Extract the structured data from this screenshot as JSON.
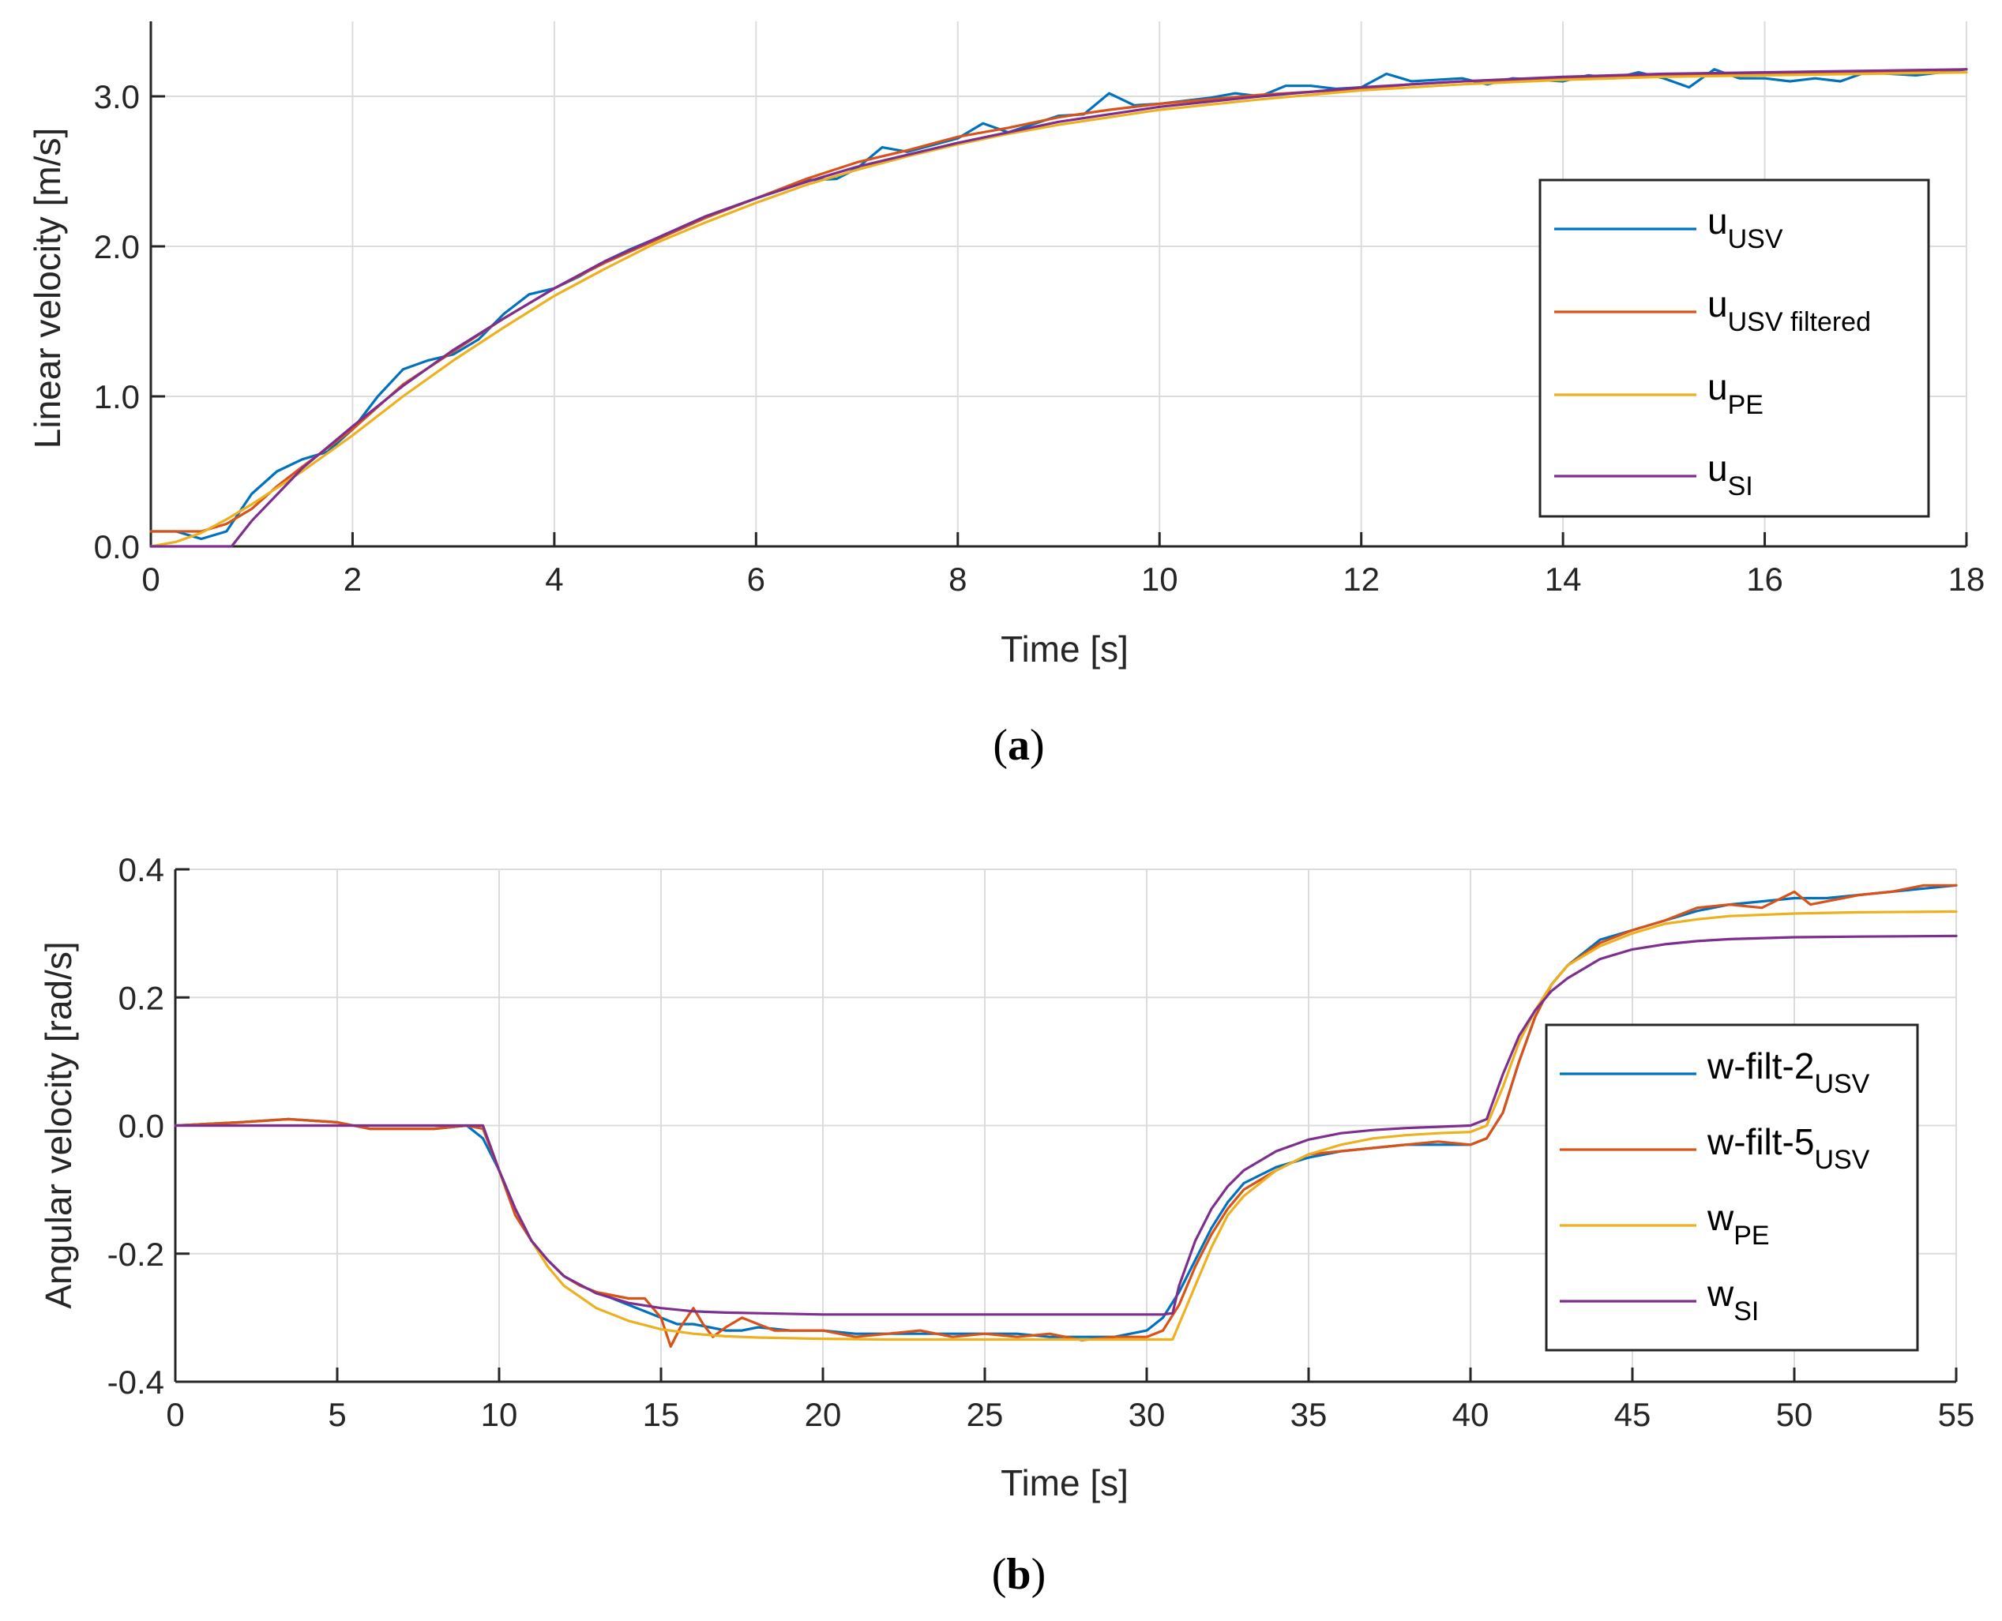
{
  "chart_data": [
    {
      "type": "line",
      "panel": "a",
      "caption_letter": "a",
      "xlabel": "Time [s]",
      "ylabel": "Linear velocity [m/s]",
      "xlim": [
        0,
        18
      ],
      "ylim": [
        0,
        3.5
      ],
      "xticks": [
        0,
        2,
        4,
        6,
        8,
        10,
        12,
        14,
        16,
        18
      ],
      "xtick_labels": [
        "0",
        "2",
        "4",
        "6",
        "8",
        "10",
        "12",
        "14",
        "16",
        "18"
      ],
      "yticks": [
        0,
        1,
        2,
        3
      ],
      "ytick_labels": [
        "0.0",
        "1.0",
        "2.0",
        "3.0"
      ],
      "grid": true,
      "legend_position": "right",
      "series": [
        {
          "name": "u",
          "subscript": "USV",
          "color": "#0072BD",
          "x": [
            0,
            0.25,
            0.5,
            0.75,
            1,
            1.25,
            1.5,
            1.75,
            2,
            2.25,
            2.5,
            2.75,
            3,
            3.25,
            3.5,
            3.75,
            4,
            4.25,
            4.5,
            4.75,
            5,
            5.5,
            6,
            6.5,
            6.8,
            7,
            7.25,
            7.5,
            8,
            8.25,
            8.5,
            9,
            9.25,
            9.5,
            9.75,
            10,
            10.5,
            10.75,
            11,
            11.25,
            11.5,
            11.75,
            12,
            12.25,
            12.5,
            13,
            13.25,
            13.5,
            14,
            14.25,
            14.5,
            14.75,
            15,
            15.25,
            15.5,
            15.75,
            16,
            16.25,
            16.5,
            16.75,
            17,
            17.25,
            17.5,
            18
          ],
          "y": [
            0.1,
            0.1,
            0.05,
            0.1,
            0.35,
            0.5,
            0.58,
            0.63,
            0.78,
            1.0,
            1.18,
            1.24,
            1.28,
            1.38,
            1.55,
            1.68,
            1.72,
            1.8,
            1.9,
            1.98,
            2.05,
            2.2,
            2.32,
            2.44,
            2.45,
            2.52,
            2.66,
            2.63,
            2.72,
            2.82,
            2.76,
            2.87,
            2.88,
            3.02,
            2.94,
            2.95,
            2.99,
            3.02,
            3.0,
            3.07,
            3.07,
            3.05,
            3.06,
            3.15,
            3.1,
            3.12,
            3.08,
            3.12,
            3.1,
            3.14,
            3.12,
            3.16,
            3.12,
            3.06,
            3.18,
            3.12,
            3.12,
            3.1,
            3.12,
            3.1,
            3.16,
            3.15,
            3.14,
            3.18
          ]
        },
        {
          "name": "u",
          "subscript": "USV filtered",
          "color": "#D95319",
          "x": [
            0,
            0.5,
            0.75,
            1,
            1.25,
            1.5,
            2,
            2.5,
            3,
            3.5,
            4,
            4.5,
            5,
            5.5,
            6,
            6.5,
            7,
            7.5,
            8,
            8.5,
            9,
            9.5,
            10,
            10.5,
            11,
            11.5,
            12,
            12.5,
            13,
            13.5,
            14,
            14.5,
            15,
            15.5,
            16,
            16.5,
            17,
            17.5,
            18
          ],
          "y": [
            0.1,
            0.1,
            0.15,
            0.25,
            0.4,
            0.53,
            0.78,
            1.08,
            1.3,
            1.52,
            1.72,
            1.89,
            2.04,
            2.19,
            2.32,
            2.45,
            2.56,
            2.64,
            2.73,
            2.79,
            2.86,
            2.91,
            2.95,
            2.98,
            3.01,
            3.03,
            3.05,
            3.08,
            3.1,
            3.11,
            3.12,
            3.13,
            3.14,
            3.15,
            3.15,
            3.15,
            3.16,
            3.17,
            3.18
          ]
        },
        {
          "name": "u",
          "subscript": "PE",
          "color": "#EDB120",
          "x": [
            0,
            0.25,
            0.5,
            0.75,
            1,
            1.5,
            2,
            2.5,
            3,
            3.5,
            4,
            4.5,
            5,
            5.5,
            6,
            6.5,
            7,
            7.5,
            8,
            8.5,
            9,
            9.5,
            10,
            11,
            12,
            13,
            14,
            15,
            16,
            17,
            18
          ],
          "y": [
            0,
            0.03,
            0.09,
            0.18,
            0.28,
            0.5,
            0.74,
            1.0,
            1.24,
            1.46,
            1.67,
            1.85,
            2.02,
            2.16,
            2.29,
            2.41,
            2.51,
            2.6,
            2.68,
            2.75,
            2.81,
            2.86,
            2.91,
            2.98,
            3.04,
            3.08,
            3.11,
            3.13,
            3.14,
            3.15,
            3.16
          ]
        },
        {
          "name": "u",
          "subscript": "SI",
          "color": "#7E2F8E",
          "x": [
            0,
            0.78,
            0.8,
            1,
            1.5,
            2,
            2.5,
            3,
            3.5,
            4,
            4.5,
            5,
            5.5,
            6,
            6.5,
            7,
            7.5,
            8,
            8.5,
            9,
            9.5,
            10,
            11,
            12,
            13,
            14,
            15,
            16,
            17,
            18
          ],
          "y": [
            0,
            0,
            0.0,
            0.17,
            0.52,
            0.8,
            1.07,
            1.31,
            1.52,
            1.72,
            1.9,
            2.05,
            2.2,
            2.32,
            2.43,
            2.53,
            2.61,
            2.69,
            2.76,
            2.83,
            2.88,
            2.93,
            3.0,
            3.06,
            3.1,
            3.13,
            3.15,
            3.16,
            3.17,
            3.18
          ]
        }
      ]
    },
    {
      "type": "line",
      "panel": "b",
      "caption_letter": "b",
      "xlabel": "Time [s]",
      "ylabel": "Angular velocity [rad/s]",
      "xlim": [
        0,
        55
      ],
      "ylim": [
        -0.4,
        0.4
      ],
      "xticks": [
        0,
        5,
        10,
        15,
        20,
        25,
        30,
        35,
        40,
        45,
        50,
        55
      ],
      "xtick_labels": [
        "0",
        "5",
        "10",
        "15",
        "20",
        "25",
        "30",
        "35",
        "40",
        "45",
        "50",
        "55"
      ],
      "yticks": [
        -0.4,
        -0.2,
        0,
        0.2,
        0.4
      ],
      "ytick_labels": [
        "-0.4",
        "-0.2",
        "0.0",
        "0.2",
        "0.4"
      ],
      "grid": true,
      "legend_position": "right",
      "series": [
        {
          "name": "w-filt-2",
          "subscript": "USV",
          "color": "#0072BD",
          "x": [
            0,
            2,
            3.5,
            5,
            6,
            7,
            8,
            9,
            9.5,
            10,
            10.5,
            11,
            11.5,
            12,
            12.5,
            13,
            13.5,
            14,
            14.5,
            15,
            15.5,
            16,
            16.5,
            17,
            17.5,
            18,
            19,
            20,
            21,
            22,
            23,
            24,
            25,
            26,
            27,
            28,
            29,
            30,
            30.5,
            31,
            31.5,
            32,
            32.5,
            33,
            34,
            35,
            36,
            37,
            38,
            39,
            40,
            40.5,
            41,
            41.5,
            42,
            42.5,
            43,
            44,
            45,
            46,
            47,
            48,
            49,
            50,
            51,
            52,
            53,
            54,
            55
          ],
          "y": [
            0,
            0.005,
            0.01,
            0.005,
            -0.005,
            -0.005,
            -0.005,
            0,
            -0.02,
            -0.07,
            -0.13,
            -0.18,
            -0.21,
            -0.235,
            -0.25,
            -0.26,
            -0.27,
            -0.28,
            -0.29,
            -0.3,
            -0.31,
            -0.31,
            -0.315,
            -0.32,
            -0.32,
            -0.315,
            -0.32,
            -0.32,
            -0.325,
            -0.325,
            -0.325,
            -0.325,
            -0.325,
            -0.325,
            -0.33,
            -0.33,
            -0.33,
            -0.32,
            -0.3,
            -0.26,
            -0.21,
            -0.16,
            -0.12,
            -0.09,
            -0.065,
            -0.05,
            -0.04,
            -0.035,
            -0.03,
            -0.03,
            -0.03,
            -0.02,
            0.02,
            0.1,
            0.17,
            0.22,
            0.25,
            0.29,
            0.305,
            0.32,
            0.335,
            0.345,
            0.35,
            0.355,
            0.355,
            0.36,
            0.365,
            0.37,
            0.375
          ]
        },
        {
          "name": "w-filt-5",
          "subscript": "USV",
          "color": "#D95319",
          "x": [
            0,
            2,
            3.5,
            5,
            6,
            7,
            8,
            9,
            9.5,
            10,
            10.5,
            11,
            11.5,
            12,
            12.5,
            13,
            13.5,
            14,
            14.5,
            15,
            15.3,
            15.6,
            16,
            16.3,
            16.6,
            17,
            17.5,
            18,
            18.5,
            19,
            20,
            21,
            22,
            23,
            24,
            25,
            26,
            27,
            28,
            29,
            30,
            30.5,
            31,
            31.5,
            32,
            32.5,
            33,
            34,
            35,
            36,
            37,
            38,
            39,
            40,
            40.5,
            41,
            41.5,
            42,
            42.5,
            43,
            44,
            45,
            46,
            47,
            48,
            49,
            50,
            50.5,
            51,
            52,
            53,
            54,
            55
          ],
          "y": [
            0,
            0.005,
            0.01,
            0.005,
            -0.005,
            -0.005,
            -0.005,
            0,
            -0.005,
            -0.07,
            -0.14,
            -0.18,
            -0.21,
            -0.235,
            -0.25,
            -0.26,
            -0.265,
            -0.27,
            -0.27,
            -0.3,
            -0.345,
            -0.315,
            -0.285,
            -0.31,
            -0.33,
            -0.315,
            -0.3,
            -0.31,
            -0.32,
            -0.32,
            -0.32,
            -0.33,
            -0.325,
            -0.32,
            -0.33,
            -0.325,
            -0.33,
            -0.325,
            -0.335,
            -0.33,
            -0.33,
            -0.32,
            -0.28,
            -0.22,
            -0.17,
            -0.13,
            -0.1,
            -0.07,
            -0.045,
            -0.04,
            -0.035,
            -0.03,
            -0.025,
            -0.03,
            -0.02,
            0.02,
            0.1,
            0.17,
            0.22,
            0.25,
            0.285,
            0.305,
            0.32,
            0.34,
            0.345,
            0.34,
            0.365,
            0.345,
            0.35,
            0.36,
            0.365,
            0.375,
            0.375
          ]
        },
        {
          "name": "w",
          "subscript": "PE",
          "color": "#EDB120",
          "x": [
            0,
            9.5,
            10,
            10.5,
            11,
            11.5,
            12,
            13,
            14,
            15,
            16,
            17,
            18,
            20,
            22,
            25,
            28,
            30.8,
            31,
            31.5,
            32,
            32.5,
            33,
            34,
            35,
            36,
            37,
            38,
            39,
            40,
            40.5,
            41,
            41.5,
            42,
            42.5,
            43,
            44,
            45,
            46,
            47,
            48,
            50,
            52,
            55
          ],
          "y": [
            0,
            0,
            -0.07,
            -0.13,
            -0.18,
            -0.22,
            -0.25,
            -0.285,
            -0.305,
            -0.318,
            -0.325,
            -0.329,
            -0.331,
            -0.333,
            -0.334,
            -0.334,
            -0.334,
            -0.334,
            -0.31,
            -0.25,
            -0.19,
            -0.14,
            -0.11,
            -0.07,
            -0.045,
            -0.03,
            -0.02,
            -0.015,
            -0.012,
            -0.01,
            0,
            0.06,
            0.13,
            0.18,
            0.22,
            0.25,
            0.28,
            0.3,
            0.315,
            0.322,
            0.327,
            0.331,
            0.333,
            0.334
          ]
        },
        {
          "name": "w",
          "subscript": "SI",
          "color": "#7E2F8E",
          "x": [
            0,
            9.5,
            10,
            10.5,
            11,
            11.5,
            12,
            13,
            14,
            15,
            16,
            17,
            18,
            20,
            22,
            25,
            28,
            30.5,
            30.8,
            31,
            31.5,
            32,
            32.5,
            33,
            34,
            35,
            36,
            37,
            38,
            39,
            40,
            40.5,
            41,
            41.5,
            42,
            42.5,
            43,
            44,
            45,
            46,
            47,
            48,
            50,
            52,
            55
          ],
          "y": [
            0,
            0,
            -0.07,
            -0.13,
            -0.18,
            -0.21,
            -0.235,
            -0.262,
            -0.277,
            -0.285,
            -0.29,
            -0.292,
            -0.293,
            -0.295,
            -0.295,
            -0.295,
            -0.295,
            -0.295,
            -0.293,
            -0.25,
            -0.18,
            -0.13,
            -0.095,
            -0.07,
            -0.04,
            -0.022,
            -0.012,
            -0.007,
            -0.004,
            -0.002,
            0,
            0.01,
            0.08,
            0.14,
            0.18,
            0.21,
            0.23,
            0.26,
            0.275,
            0.283,
            0.288,
            0.291,
            0.294,
            0.295,
            0.296
          ]
        }
      ]
    }
  ]
}
